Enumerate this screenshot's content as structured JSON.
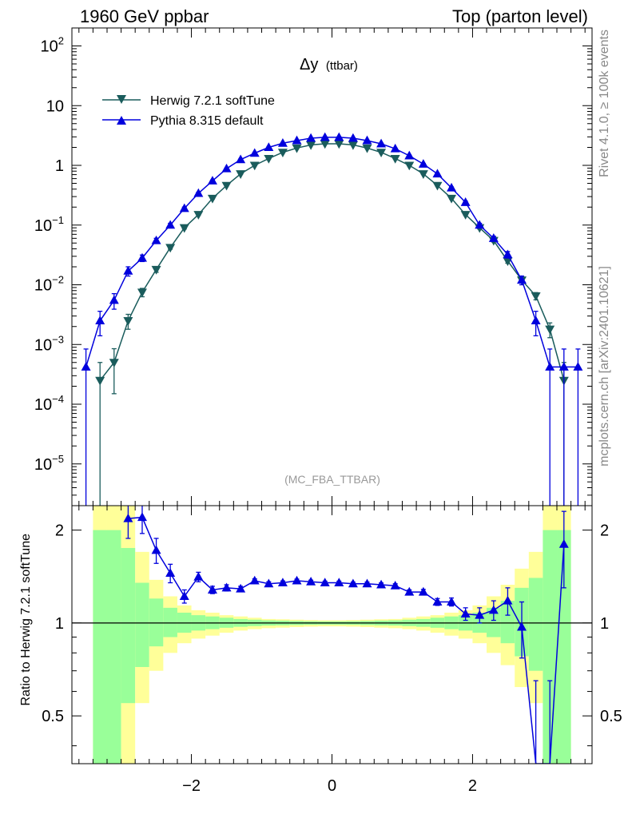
{
  "header": {
    "left": "1960 GeV ppbar",
    "right": "Top (parton level)"
  },
  "side": {
    "top": "Rivet 4.1.0, ≥ 100k events",
    "bottom": "mcplots.cern.ch [arXiv:2401.10621]"
  },
  "colors": {
    "herwig": "#1a5c5c",
    "pythia": "#0000dd",
    "band_inner": "#99ff99",
    "band_outer": "#ffff99"
  },
  "chart_data": [
    {
      "type": "line",
      "panel": "main",
      "title": "Δy",
      "title_sub": "(ttbar)",
      "watermark": "(MC_FBA_TTBAR)",
      "yscale": "log",
      "ylim": [
        2e-06,
        200
      ],
      "xlim": [
        -3.7,
        3.7
      ],
      "x_ticks": [
        -2,
        0,
        2
      ],
      "y_ticks": [
        {
          "value": 100,
          "base": "10",
          "exp": "2"
        },
        {
          "value": 10,
          "label": "10"
        },
        {
          "value": 1,
          "label": "1"
        },
        {
          "value": 0.1,
          "base": "10",
          "exp": "−1"
        },
        {
          "value": 0.01,
          "base": "10",
          "exp": "−2"
        },
        {
          "value": 0.001,
          "base": "10",
          "exp": "−3"
        },
        {
          "value": 0.0001,
          "base": "10",
          "exp": "−4"
        },
        {
          "value": 1e-05,
          "base": "10",
          "exp": "−5"
        }
      ],
      "legend_position": "top-left",
      "x": [
        -3.5,
        -3.3,
        -3.1,
        -2.9,
        -2.7,
        -2.5,
        -2.3,
        -2.1,
        -1.9,
        -1.7,
        -1.5,
        -1.3,
        -1.1,
        -0.9,
        -0.7,
        -0.5,
        -0.3,
        -0.1,
        0.1,
        0.3,
        0.5,
        0.7,
        0.9,
        1.1,
        1.3,
        1.5,
        1.7,
        1.9,
        2.1,
        2.3,
        2.5,
        2.7,
        2.9,
        3.1,
        3.3,
        3.5
      ],
      "series": [
        {
          "name": "Herwig 7.2.1 softTune",
          "marker": "triangle-down",
          "values": [
            null,
            0.00025,
            0.0005,
            0.0025,
            0.0075,
            0.018,
            0.042,
            0.09,
            0.15,
            0.28,
            0.46,
            0.72,
            1.0,
            1.3,
            1.65,
            1.95,
            2.2,
            2.3,
            2.3,
            2.2,
            1.95,
            1.65,
            1.3,
            1.0,
            0.72,
            0.46,
            0.28,
            0.15,
            0.09,
            0.055,
            0.025,
            0.012,
            0.0065,
            0.0018,
            0.00025,
            null
          ],
          "errors": [
            null,
            0.00025,
            0.00035,
            0.0007,
            0.0012,
            0.0018,
            0.0025,
            0.004,
            0.005,
            0.007,
            0.009,
            0.011,
            0.013,
            0.015,
            0.017,
            0.019,
            0.02,
            0.021,
            0.021,
            0.02,
            0.019,
            0.017,
            0.015,
            0.013,
            0.011,
            0.009,
            0.007,
            0.005,
            0.004,
            0.003,
            0.002,
            0.0012,
            0.0009,
            0.0005,
            0.00025,
            null
          ]
        },
        {
          "name": "Pythia 8.315 default",
          "marker": "triangle-up",
          "values": [
            0.00042,
            0.0025,
            0.0055,
            0.017,
            0.028,
            0.055,
            0.1,
            0.19,
            0.34,
            0.55,
            0.88,
            1.25,
            1.6,
            2.0,
            2.35,
            2.6,
            2.85,
            2.95,
            2.95,
            2.85,
            2.6,
            2.3,
            1.9,
            1.45,
            1.05,
            0.72,
            0.42,
            0.24,
            0.1,
            0.06,
            0.032,
            0.012,
            0.0025,
            0.00042,
            0.00042,
            0.00042
          ],
          "errors": [
            0.00042,
            0.0011,
            0.0016,
            0.003,
            0.0035,
            0.005,
            0.007,
            0.01,
            0.013,
            0.017,
            0.02,
            0.024,
            0.028,
            0.031,
            0.034,
            0.036,
            0.038,
            0.039,
            0.039,
            0.038,
            0.036,
            0.034,
            0.031,
            0.028,
            0.024,
            0.02,
            0.015,
            0.011,
            0.007,
            0.005,
            0.004,
            0.002,
            0.0011,
            0.00042,
            0.00042,
            0.00042
          ]
        }
      ]
    },
    {
      "type": "line",
      "panel": "ratio",
      "ylabel": "Ratio to Herwig 7.2.1 softTune",
      "yscale": "log",
      "ylim": [
        0.35,
        2.4
      ],
      "xlim": [
        -3.7,
        3.7
      ],
      "x_ticks": [
        -2,
        0,
        2
      ],
      "y_ticks": [
        {
          "value": 0.5,
          "label": "0.5"
        },
        {
          "value": 1,
          "label": "1"
        },
        {
          "value": 2,
          "label": "2"
        }
      ],
      "bands": {
        "x_edges": [
          -3.4,
          -3.2,
          -3.0,
          -2.8,
          -2.6,
          -2.4,
          -2.2,
          -2.0,
          -1.8,
          -1.6,
          -1.4,
          -1.2,
          -1.0,
          -0.8,
          -0.6,
          -0.4,
          -0.2,
          0.0,
          0.2,
          0.4,
          0.6,
          0.8,
          1.0,
          1.2,
          1.4,
          1.6,
          1.8,
          2.0,
          2.2,
          2.4,
          2.6,
          2.8,
          3.0,
          3.2,
          3.4
        ],
        "inner_up": [
          2.0,
          2.0,
          1.75,
          1.35,
          1.2,
          1.12,
          1.08,
          1.06,
          1.05,
          1.04,
          1.03,
          1.025,
          1.02,
          1.018,
          1.015,
          1.013,
          1.012,
          1.012,
          1.013,
          1.015,
          1.018,
          1.02,
          1.025,
          1.03,
          1.04,
          1.05,
          1.06,
          1.08,
          1.12,
          1.18,
          1.3,
          1.4,
          2.0,
          2.0
        ],
        "outer_up": [
          2.4,
          2.4,
          2.4,
          1.7,
          1.38,
          1.22,
          1.14,
          1.1,
          1.08,
          1.06,
          1.05,
          1.04,
          1.03,
          1.028,
          1.025,
          1.022,
          1.02,
          1.02,
          1.022,
          1.025,
          1.028,
          1.03,
          1.04,
          1.05,
          1.06,
          1.08,
          1.1,
          1.14,
          1.22,
          1.33,
          1.5,
          1.7,
          2.4,
          2.4
        ],
        "inner_down": [
          0.35,
          0.35,
          0.55,
          0.72,
          0.84,
          0.9,
          0.93,
          0.945,
          0.955,
          0.965,
          0.972,
          0.977,
          0.981,
          0.983,
          0.985,
          0.987,
          0.988,
          0.988,
          0.987,
          0.985,
          0.983,
          0.981,
          0.977,
          0.972,
          0.965,
          0.955,
          0.945,
          0.93,
          0.9,
          0.86,
          0.78,
          0.7,
          0.35,
          0.35
        ],
        "outer_down": [
          0.35,
          0.35,
          0.35,
          0.55,
          0.7,
          0.8,
          0.86,
          0.89,
          0.91,
          0.93,
          0.945,
          0.955,
          0.962,
          0.966,
          0.97,
          0.973,
          0.975,
          0.975,
          0.973,
          0.97,
          0.966,
          0.962,
          0.955,
          0.945,
          0.93,
          0.91,
          0.89,
          0.86,
          0.8,
          0.73,
          0.62,
          0.55,
          0.35,
          0.35
        ]
      },
      "x": [
        -3.5,
        -3.3,
        -3.1,
        -2.9,
        -2.7,
        -2.5,
        -2.3,
        -2.1,
        -1.9,
        -1.7,
        -1.5,
        -1.3,
        -1.1,
        -0.9,
        -0.7,
        -0.5,
        -0.3,
        -0.1,
        0.1,
        0.3,
        0.5,
        0.7,
        0.9,
        1.1,
        1.3,
        1.5,
        1.7,
        1.9,
        2.1,
        2.3,
        2.5,
        2.7,
        2.9,
        3.1,
        3.3,
        3.5
      ],
      "series": [
        {
          "name": "Pythia 8.315 default",
          "values": [
            null,
            null,
            null,
            2.18,
            2.2,
            1.72,
            1.45,
            1.22,
            1.41,
            1.28,
            1.3,
            1.29,
            1.37,
            1.34,
            1.35,
            1.37,
            1.36,
            1.35,
            1.35,
            1.34,
            1.34,
            1.33,
            1.32,
            1.26,
            1.26,
            1.17,
            1.17,
            1.07,
            1.06,
            1.1,
            1.18,
            0.97,
            0.35,
            0.35,
            1.8,
            null
          ],
          "errors": [
            null,
            null,
            null,
            0.3,
            0.25,
            0.16,
            0.1,
            0.06,
            0.05,
            0.035,
            0.03,
            0.025,
            0.02,
            0.02,
            0.018,
            0.017,
            0.016,
            0.016,
            0.016,
            0.016,
            0.017,
            0.018,
            0.02,
            0.02,
            0.025,
            0.03,
            0.035,
            0.05,
            0.06,
            0.08,
            0.12,
            0.2,
            0.3,
            0.3,
            0.5,
            null
          ]
        }
      ]
    }
  ]
}
